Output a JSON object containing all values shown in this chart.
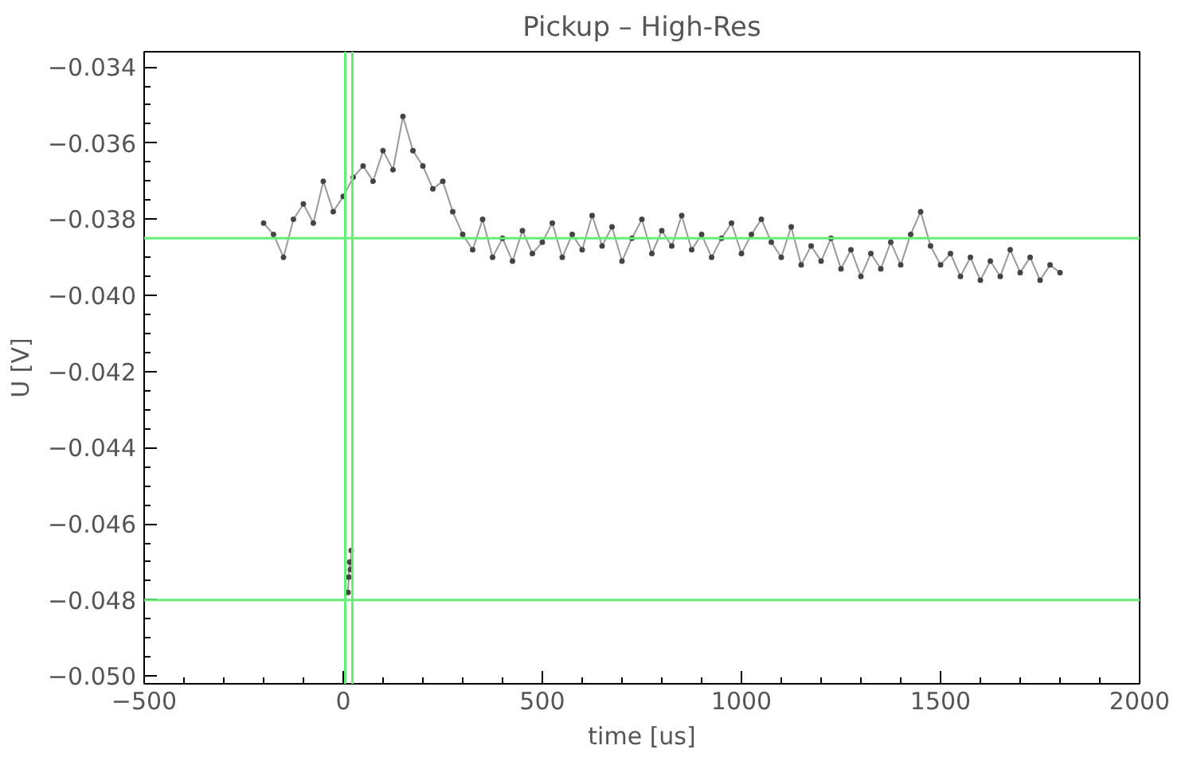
{
  "chart_data": {
    "type": "line",
    "title": "Pickup – High-Res",
    "xlabel": "time [us]",
    "ylabel": "U [V]",
    "xlim": [
      -500,
      2000
    ],
    "xticks": [
      -500,
      0,
      500,
      1000,
      1500,
      2000
    ],
    "ylim": [
      -0.0502,
      -0.0336
    ],
    "yticks": [
      {
        "value": -0.05,
        "label": "−0.050"
      },
      -0.048,
      -0.046,
      -0.044,
      -0.042,
      {
        "value": -0.04,
        "label": "−0.040"
      },
      -0.038,
      -0.036,
      -0.034
    ],
    "marker": "circle",
    "line_style": "solid",
    "series": [
      {
        "color": "#444444",
        "x": [
          -200,
          -175,
          -150,
          -125,
          -100,
          -75,
          -50,
          -25,
          0,
          25,
          50,
          75,
          100,
          125,
          150,
          175,
          200,
          225,
          250,
          275,
          300,
          325,
          350,
          375,
          400,
          425,
          450,
          475,
          500,
          525,
          550,
          575,
          600,
          625,
          650,
          675,
          700,
          725,
          750,
          775,
          800,
          825,
          850,
          875,
          900,
          925,
          950,
          975,
          1000,
          1025,
          1050,
          1075,
          1100,
          1125,
          1150,
          1175,
          1200,
          1225,
          1250,
          1275,
          1300,
          1325,
          1350,
          1375,
          1400,
          1425,
          1450,
          1475,
          1500,
          1525,
          1550,
          1575,
          1600,
          1625,
          1650,
          1675,
          1700,
          1725,
          1750,
          1775,
          1800
        ],
        "values": [
          -0.0381,
          -0.0384,
          -0.039,
          -0.038,
          -0.0376,
          -0.0381,
          -0.037,
          -0.0378,
          -0.0374,
          -0.0369,
          -0.0366,
          -0.037,
          -0.0362,
          -0.0367,
          -0.0353,
          -0.0362,
          -0.0366,
          -0.0372,
          -0.037,
          -0.0378,
          -0.0384,
          -0.0388,
          -0.038,
          -0.039,
          -0.0385,
          -0.0391,
          -0.0383,
          -0.0389,
          -0.0386,
          -0.0381,
          -0.039,
          -0.0384,
          -0.0388,
          -0.0379,
          -0.0387,
          -0.0382,
          -0.0391,
          -0.0385,
          -0.038,
          -0.0389,
          -0.0383,
          -0.0387,
          -0.0379,
          -0.0388,
          -0.0384,
          -0.039,
          -0.0385,
          -0.0381,
          -0.0389,
          -0.0384,
          -0.038,
          -0.0386,
          -0.039,
          -0.0382,
          -0.0392,
          -0.0387,
          -0.0391,
          -0.0385,
          -0.0393,
          -0.0388,
          -0.0395,
          -0.0389,
          -0.0393,
          -0.0386,
          -0.0392,
          -0.0384,
          -0.0378,
          -0.0387,
          -0.0392,
          -0.0389,
          -0.0395,
          -0.039,
          -0.0396,
          -0.0391,
          -0.0395,
          -0.0388,
          -0.0394,
          -0.039,
          -0.0396,
          -0.0392,
          -0.0394
        ]
      },
      {
        "color": "#444444",
        "x": [
          12,
          14,
          16,
          18,
          20
        ],
        "values": [
          -0.0478,
          -0.0474,
          -0.047,
          -0.0472,
          -0.0467
        ]
      }
    ],
    "ref_lines": [
      {
        "axis": "y",
        "value": -0.0385,
        "color": "#66ee77"
      },
      {
        "axis": "y",
        "value": -0.048,
        "color": "#66ee77"
      },
      {
        "axis": "x",
        "value": 5,
        "color": "#66ee77"
      },
      {
        "axis": "x",
        "value": 23,
        "color": "#66ee77"
      }
    ]
  }
}
